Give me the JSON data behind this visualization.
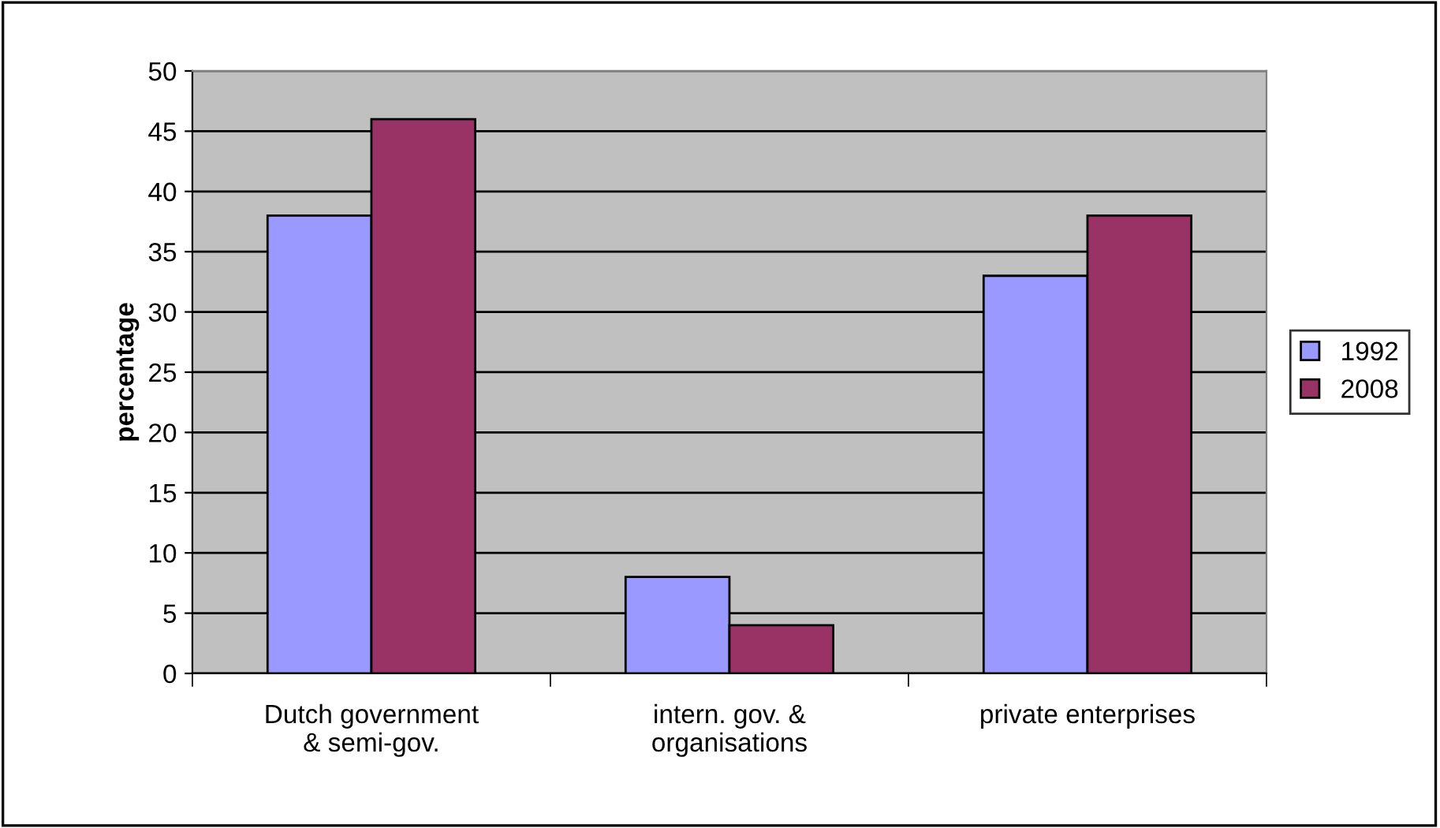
{
  "chart_data": {
    "type": "bar",
    "ylabel": "percentage",
    "categories": [
      "Dutch government\n& semi-gov.",
      "intern. gov. &\norganisations",
      "private enterprises"
    ],
    "series": [
      {
        "name": "1992",
        "color": "#9999ff",
        "values": [
          38,
          8,
          33
        ]
      },
      {
        "name": "2008",
        "color": "#993366",
        "values": [
          46,
          4,
          38
        ]
      }
    ],
    "ylim": [
      0,
      50
    ],
    "yticks": [
      0,
      5,
      10,
      15,
      20,
      25,
      30,
      35,
      40,
      45,
      50
    ],
    "grid": "y",
    "legend": "right"
  }
}
